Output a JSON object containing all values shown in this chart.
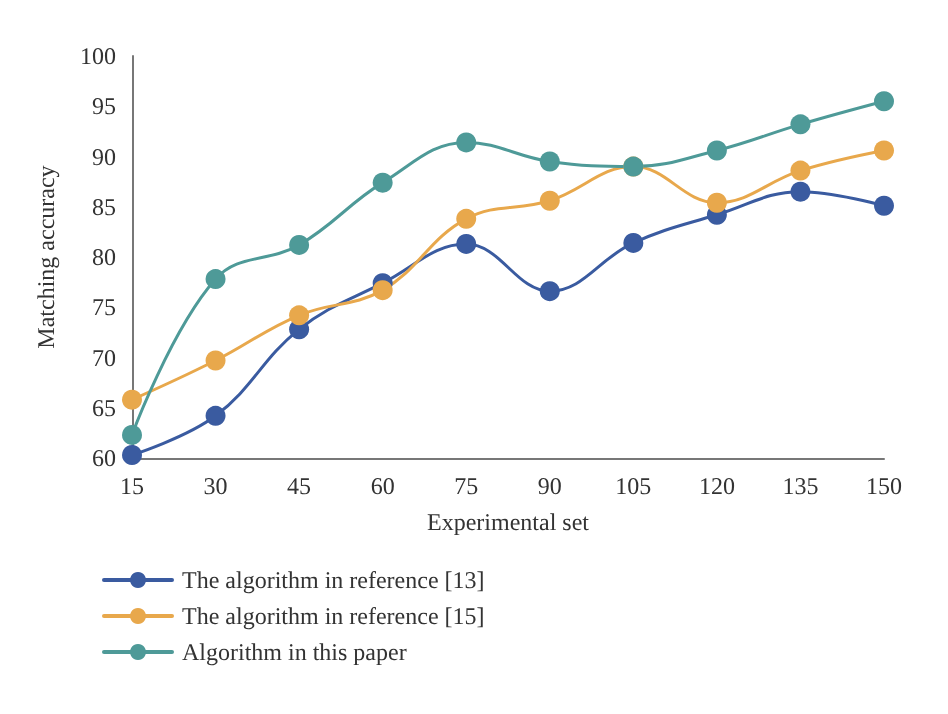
{
  "chart_data": {
    "type": "line",
    "xlabel": "Experimental set",
    "ylabel": "Matching accuracy",
    "x": [
      15,
      30,
      45,
      60,
      75,
      90,
      105,
      120,
      135,
      150
    ],
    "xlim": [
      15,
      150
    ],
    "xticks": [
      15,
      30,
      45,
      60,
      75,
      90,
      105,
      120,
      135,
      150
    ],
    "ylim": [
      60,
      100
    ],
    "yticks": [
      60,
      65,
      70,
      75,
      80,
      85,
      90,
      95,
      100
    ],
    "grid": false,
    "legend": "bottom",
    "marker": "circle",
    "line_style": "solid",
    "series": [
      {
        "name": "The algorithm in reference [13]",
        "color": "#3a5ba0",
        "values": [
          60.3,
          64.2,
          72.8,
          77.4,
          81.3,
          76.6,
          81.4,
          84.2,
          86.5,
          85.1
        ]
      },
      {
        "name": "The algorithm in reference [15]",
        "color": "#e8a84c",
        "values": [
          65.8,
          69.7,
          74.2,
          76.7,
          83.8,
          85.6,
          89.0,
          85.4,
          88.6,
          90.6
        ]
      },
      {
        "name": "Algorithm in this paper",
        "color": "#4e9a98",
        "values": [
          62.3,
          77.8,
          81.2,
          87.4,
          91.4,
          89.5,
          89.0,
          90.6,
          93.2,
          95.5
        ]
      }
    ]
  }
}
